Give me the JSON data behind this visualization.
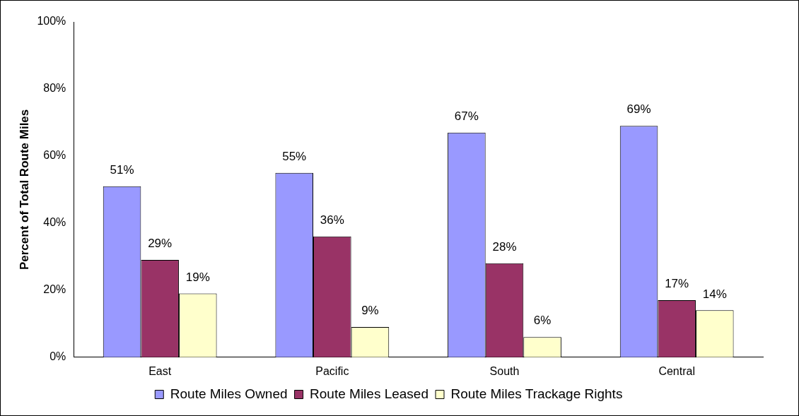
{
  "chart_data": {
    "type": "bar",
    "ylabel": "Percent of Total Route Miles",
    "categories": [
      "East",
      "Pacific",
      "South",
      "Central"
    ],
    "series": [
      {
        "name": "Route Miles Owned",
        "color": "#9999ff",
        "values": [
          51,
          55,
          67,
          69
        ],
        "value_labels": [
          "51%",
          "55%",
          "67%",
          "69%"
        ]
      },
      {
        "name": "Route Miles Leased",
        "color": "#993366",
        "values": [
          29,
          36,
          28,
          17
        ],
        "value_labels": [
          "29%",
          "36%",
          "28%",
          "17%"
        ]
      },
      {
        "name": "Route Miles Trackage Rights",
        "color": "#ffffcc",
        "values": [
          19,
          9,
          6,
          14
        ],
        "value_labels": [
          "19%",
          "9%",
          "6%",
          "14%"
        ]
      }
    ],
    "ylim": [
      0,
      100
    ],
    "yticks": [
      {
        "value": 0,
        "label": "0%"
      },
      {
        "value": 20,
        "label": "20%"
      },
      {
        "value": 40,
        "label": "40%"
      },
      {
        "value": 60,
        "label": "60%"
      },
      {
        "value": 80,
        "label": "80%"
      },
      {
        "value": 100,
        "label": "100%"
      }
    ],
    "legend": "bottom"
  }
}
